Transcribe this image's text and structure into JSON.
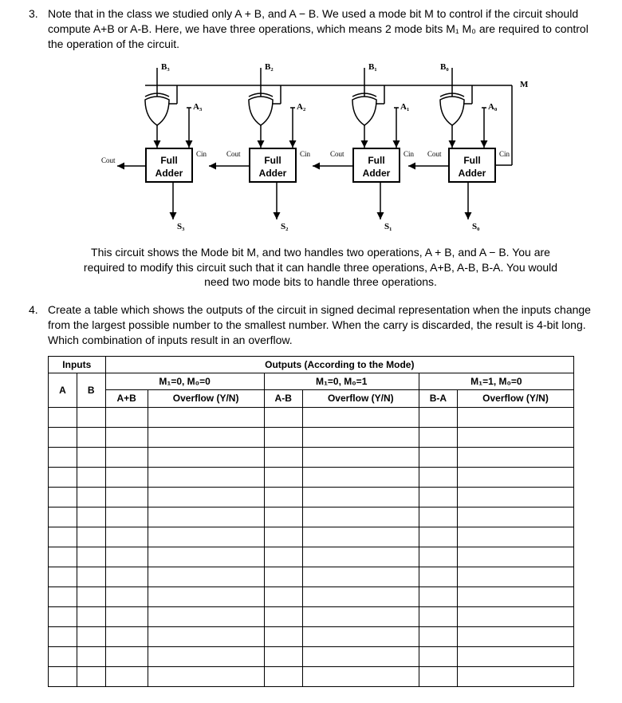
{
  "q3": {
    "number": "3.",
    "text": "Note that in the class we studied only A + B, and A − B. We used a mode bit M to control if the circuit should compute A+B or A-B. Here, we have three operations, which means 2 mode bits M₁ M₀ are required to control the operation of the circuit."
  },
  "diagram": {
    "topLabels": {
      "b3": "B₃",
      "b2": "B₂",
      "b1": "B₁",
      "b0": "B₀",
      "m": "M"
    },
    "midLabels": {
      "a3": "A₃",
      "a2": "A₂",
      "a1": "A₁",
      "a0": "A₀"
    },
    "adderLabel": "Full\nAdder",
    "pins": {
      "cout": "Cₒᵤₜ",
      "cin": "Cᵢₙ",
      "coutText": "Cout",
      "cinText": "Cin"
    },
    "outLabels": {
      "s3": "S₃",
      "s2": "S₂",
      "s1": "S₁",
      "s0": "S₀",
      "coutLeft": "Cₒᵤₜ"
    }
  },
  "caption": "This circuit shows the Mode bit M, and two handles two operations, A + B, and A − B. You are required to modify this circuit such that it can handle three operations, A+B, A-B, B-A. You would need two mode bits to handle three operations.",
  "q4": {
    "number": "4.",
    "text": "Create a table which shows the outputs of the circuit in signed decimal representation when the inputs change from the largest possible number to the smallest number. When the carry is discarded, the result is 4-bit long. Which combination of inputs result in an overflow."
  },
  "table": {
    "head": {
      "inputs": "Inputs",
      "outputs": "Outputs (According to the Mode)",
      "mode00": "M₁=0, M₀=0",
      "mode01": "M₁=0, M₀=1",
      "mode10": "M₁=1, M₀=0",
      "a": "A",
      "b": "B",
      "aplusb": "A+B",
      "aminusb": "A-B",
      "bminusa": "B-A",
      "overflow": "Overflow (Y/N)"
    },
    "emptyRows": 14
  },
  "style": {
    "bg": "#ffffff",
    "text": "#000000",
    "border": "#000000",
    "fontBody": "Segoe UI, Arial, sans-serif",
    "fontSerif": "Times New Roman, serif",
    "pageWidth": 780,
    "pageHeight": 832
  }
}
